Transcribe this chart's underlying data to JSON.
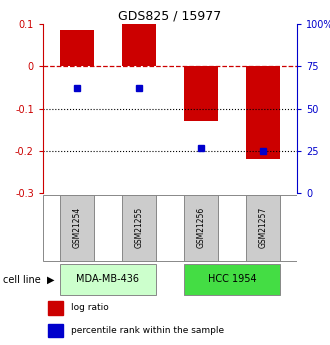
{
  "title": "GDS825 / 15977",
  "samples": [
    "GSM21254",
    "GSM21255",
    "GSM21256",
    "GSM21257"
  ],
  "log_ratio": [
    0.085,
    0.1,
    -0.13,
    -0.22
  ],
  "percentile_rank": [
    0.62,
    0.62,
    0.27,
    0.25
  ],
  "ylim_left": [
    -0.3,
    0.1
  ],
  "ylim_right": [
    0,
    1.0
  ],
  "yticks_left": [
    -0.3,
    -0.2,
    -0.1,
    0.0,
    0.1
  ],
  "ytick_labels_left": [
    "-0.3",
    "-0.2",
    "-0.1",
    "0",
    "0.1"
  ],
  "yticks_right": [
    0,
    0.25,
    0.5,
    0.75,
    1.0
  ],
  "ytick_labels_right": [
    "0",
    "25",
    "50",
    "75",
    "100%"
  ],
  "bar_color": "#cc0000",
  "dot_color": "#0000cc",
  "cell_lines": [
    "MDA-MB-436",
    "HCC 1954"
  ],
  "cell_line_colors": [
    "#ccffcc",
    "#44dd44"
  ],
  "cell_line_spans": [
    [
      0,
      2
    ],
    [
      2,
      4
    ]
  ],
  "sample_box_color": "#cccccc",
  "hline_zero_color": "#cc0000",
  "hline_dotted_color": "#000000",
  "legend_red_label": "log ratio",
  "legend_blue_label": "percentile rank within the sample",
  "bar_width": 0.55
}
